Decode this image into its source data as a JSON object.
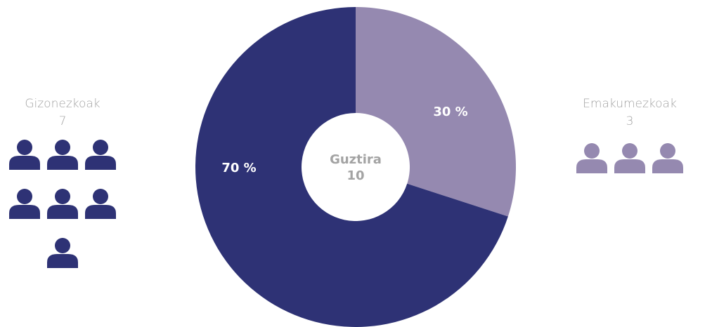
{
  "chart_data": {
    "type": "donut",
    "categories": [
      "Emakumezkoak",
      "Gizonezkoak"
    ],
    "values": [
      30,
      70
    ],
    "value_labels": [
      "30 %",
      "70 %"
    ],
    "counts": [
      3,
      7
    ],
    "colors": [
      "#9589b0",
      "#2e3275"
    ],
    "center_label": "Guztira",
    "total": 10
  }
}
